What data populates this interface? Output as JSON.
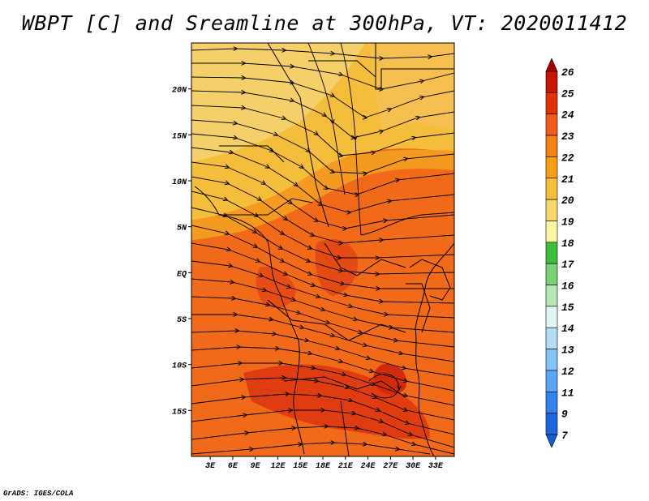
{
  "title": "WBPT [C] and Sreamline at 300hPa, VT: 2020011412",
  "footer": "GrADS: IGES/COLA",
  "map": {
    "lon_labels": [
      "3E",
      "6E",
      "9E",
      "12E",
      "15E",
      "18E",
      "21E",
      "24E",
      "27E",
      "30E",
      "33E"
    ],
    "lon_values": [
      3,
      6,
      9,
      12,
      15,
      18,
      21,
      24,
      27,
      30,
      33
    ],
    "lat_labels": [
      "20N",
      "15N",
      "10N",
      "5N",
      "EQ",
      "5S",
      "10S",
      "15S"
    ],
    "lat_values": [
      20,
      15,
      10,
      5,
      0,
      -5,
      -10,
      -15
    ],
    "lon_range": [
      0.5,
      35.5
    ],
    "lat_range": [
      -20,
      25
    ],
    "dominant_color": "#f06a1a"
  },
  "colorbar": {
    "labels": [
      "26",
      "25",
      "24",
      "23",
      "22",
      "21",
      "20",
      "19",
      "18",
      "17",
      "16",
      "15",
      "14",
      "13",
      "12",
      "11",
      "9",
      "7"
    ],
    "colors": [
      "#a50000",
      "#c81400",
      "#e23200",
      "#f05a1e",
      "#f58214",
      "#f59f14",
      "#f5bd3c",
      "#f5d76e",
      "#faf5a0",
      "#3cbe3c",
      "#78d278",
      "#b4e6b4",
      "#e1f5f5",
      "#b4dcf5",
      "#82c3f5",
      "#5aa5f5",
      "#3282f0",
      "#1e64dc",
      "#145ad2"
    ]
  }
}
